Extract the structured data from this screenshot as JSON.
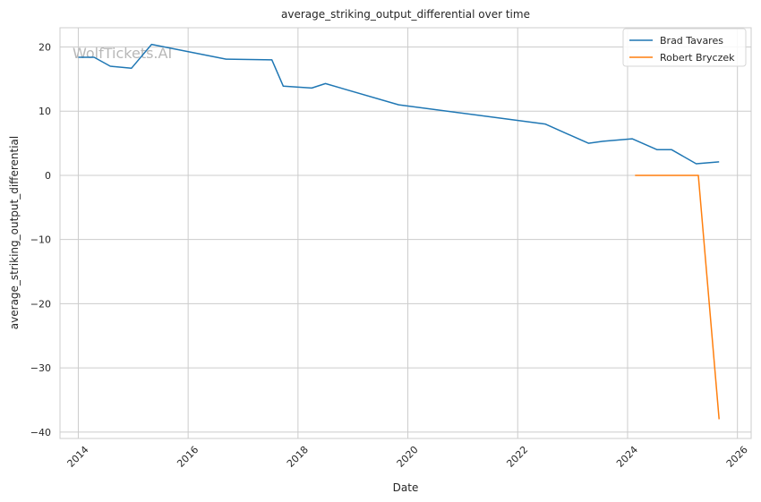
{
  "chart_data": {
    "type": "line",
    "title": "average_striking_output_differential over time",
    "xlabel": "Date",
    "ylabel": "average_striking_output_differential",
    "watermark": "WolfTickets.AI",
    "xlim": [
      "2013-09-01",
      "2026-04-01"
    ],
    "ylim": [
      -41,
      23
    ],
    "x_ticks": [
      {
        "label": "2014",
        "value": "2014-01-01"
      },
      {
        "label": "2016",
        "value": "2016-01-01"
      },
      {
        "label": "2018",
        "value": "2018-01-01"
      },
      {
        "label": "2020",
        "value": "2020-01-01"
      },
      {
        "label": "2022",
        "value": "2022-01-01"
      },
      {
        "label": "2024",
        "value": "2024-01-01"
      },
      {
        "label": "2026",
        "value": "2026-01-01"
      }
    ],
    "y_ticks": [
      {
        "label": "20",
        "value": 20
      },
      {
        "label": "10",
        "value": 10
      },
      {
        "label": "0",
        "value": 0
      },
      {
        "label": "−10",
        "value": -10
      },
      {
        "label": "−20",
        "value": -20
      },
      {
        "label": "−30",
        "value": -30
      },
      {
        "label": "−40",
        "value": -40
      }
    ],
    "grid": true,
    "legend_position": "top-right",
    "series": [
      {
        "name": "Brad Tavares",
        "color": "#1f77b4",
        "points": [
          [
            "2014-01-01",
            18.4
          ],
          [
            "2014-04-15",
            18.4
          ],
          [
            "2014-08-01",
            17.0
          ],
          [
            "2014-12-20",
            16.7
          ],
          [
            "2015-05-01",
            20.4
          ],
          [
            "2016-09-10",
            18.1
          ],
          [
            "2017-07-10",
            18.0
          ],
          [
            "2017-09-25",
            13.9
          ],
          [
            "2018-04-01",
            13.6
          ],
          [
            "2018-07-01",
            14.3
          ],
          [
            "2019-11-01",
            11.0
          ],
          [
            "2022-07-01",
            8.0
          ],
          [
            "2023-04-15",
            5.0
          ],
          [
            "2023-07-20",
            5.3
          ],
          [
            "2024-02-01",
            5.7
          ],
          [
            "2024-07-15",
            4.0
          ],
          [
            "2024-10-20",
            4.0
          ],
          [
            "2025-04-01",
            1.8
          ],
          [
            "2025-09-01",
            2.1
          ]
        ]
      },
      {
        "name": "Robert Bryczek",
        "color": "#ff7f0e",
        "points": [
          [
            "2024-02-20",
            0.0
          ],
          [
            "2025-04-15",
            0.0
          ],
          [
            "2025-09-01",
            -38.0
          ]
        ]
      }
    ]
  }
}
